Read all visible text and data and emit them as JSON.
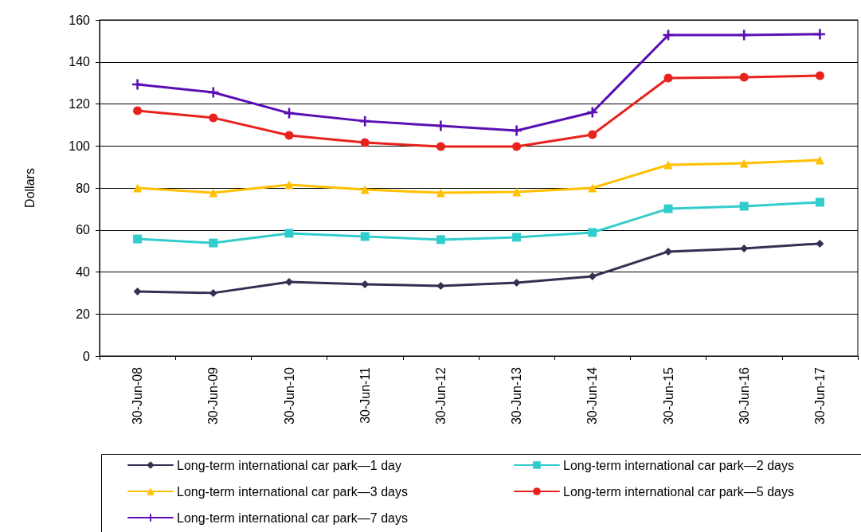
{
  "chart_data": {
    "type": "line",
    "ylabel": "Dollars",
    "categories": [
      "30-Jun-08",
      "30-Jun-09",
      "30-Jun-10",
      "30-Jun-11",
      "30-Jun-12",
      "30-Jun-13",
      "30-Jun-14",
      "30-Jun-15",
      "30-Jun-16",
      "30-Jun-17"
    ],
    "series": [
      {
        "name": "Long-term international car park—1 day",
        "color": "#333152",
        "marker": "diamond",
        "values": [
          30.7,
          30,
          35.3,
          34.1,
          33.4,
          34.9,
          37.9,
          49.7,
          51.2,
          53.5
        ]
      },
      {
        "name": "Long-term international car park—2 days",
        "color": "#33cccc",
        "marker": "square",
        "values": [
          55.7,
          53.8,
          58.4,
          56.9,
          55.4,
          56.5,
          58.8,
          70.1,
          71.3,
          73.2
        ]
      },
      {
        "name": "Long-term international car park—3 days",
        "color": "#ffc000",
        "marker": "triangle",
        "values": [
          80,
          77.7,
          81.5,
          79.2,
          77.7,
          78.1,
          80,
          91,
          91.8,
          93.3
        ]
      },
      {
        "name": "Long-term international car park—5 days",
        "color": "#e8231d",
        "marker": "circle",
        "values": [
          116.8,
          113.4,
          105,
          101.6,
          99.7,
          99.7,
          105.4,
          132.3,
          132.7,
          133.5
        ]
      },
      {
        "name": "Long-term international car park—7 days",
        "color": "#5b0fb3",
        "marker": "cross",
        "values": [
          129.3,
          125.5,
          115.6,
          111.8,
          109.6,
          107.3,
          116,
          152.8,
          152.8,
          153.2
        ]
      }
    ],
    "ylim": [
      0,
      160
    ],
    "yticks": [
      0,
      20,
      40,
      60,
      80,
      100,
      120,
      140,
      160
    ],
    "grid": "y",
    "legend": "bottom",
    "line_style": "solid"
  }
}
